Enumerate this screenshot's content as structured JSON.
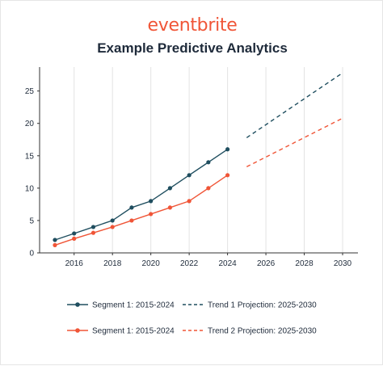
{
  "brand": "eventbrite",
  "chart_data": {
    "type": "line",
    "title": "Example Predictive Analytics",
    "xlabel": "",
    "ylabel": "",
    "xlim": [
      2014.2,
      2030.8
    ],
    "ylim": [
      0,
      28.7
    ],
    "x_ticks": [
      2016,
      2018,
      2020,
      2022,
      2024,
      2026,
      2028,
      2030
    ],
    "y_ticks": [
      0,
      5,
      10,
      15,
      20,
      25
    ],
    "grid": "vertical",
    "legend_position": "bottom",
    "series": [
      {
        "name": "Segment 1: 2015-2024",
        "color": "#1f4e5f",
        "style": "solid-markers",
        "x": [
          2015,
          2016,
          2017,
          2018,
          2019,
          2020,
          2021,
          2022,
          2023,
          2024
        ],
        "y": [
          2,
          3,
          4,
          5,
          7,
          8,
          10,
          12,
          14,
          16
        ]
      },
      {
        "name": "Segment 1: 2015-2024",
        "color": "#f05537",
        "style": "solid-markers",
        "x": [
          2015,
          2016,
          2017,
          2018,
          2019,
          2020,
          2021,
          2022,
          2023,
          2024
        ],
        "y": [
          1.2,
          2.2,
          3.1,
          4.0,
          5.0,
          6.0,
          7.0,
          8.0,
          10.0,
          12.0
        ]
      },
      {
        "name": "Trend 1 Projection: 2025-2030",
        "color": "#1f4e5f",
        "style": "dashed",
        "x": [
          2025,
          2030
        ],
        "y": [
          17.8,
          27.8
        ]
      },
      {
        "name": "Trend 2 Projection: 2025-2030",
        "color": "#f05537",
        "style": "dashed",
        "x": [
          2025,
          2030
        ],
        "y": [
          13.3,
          20.8
        ]
      }
    ]
  }
}
